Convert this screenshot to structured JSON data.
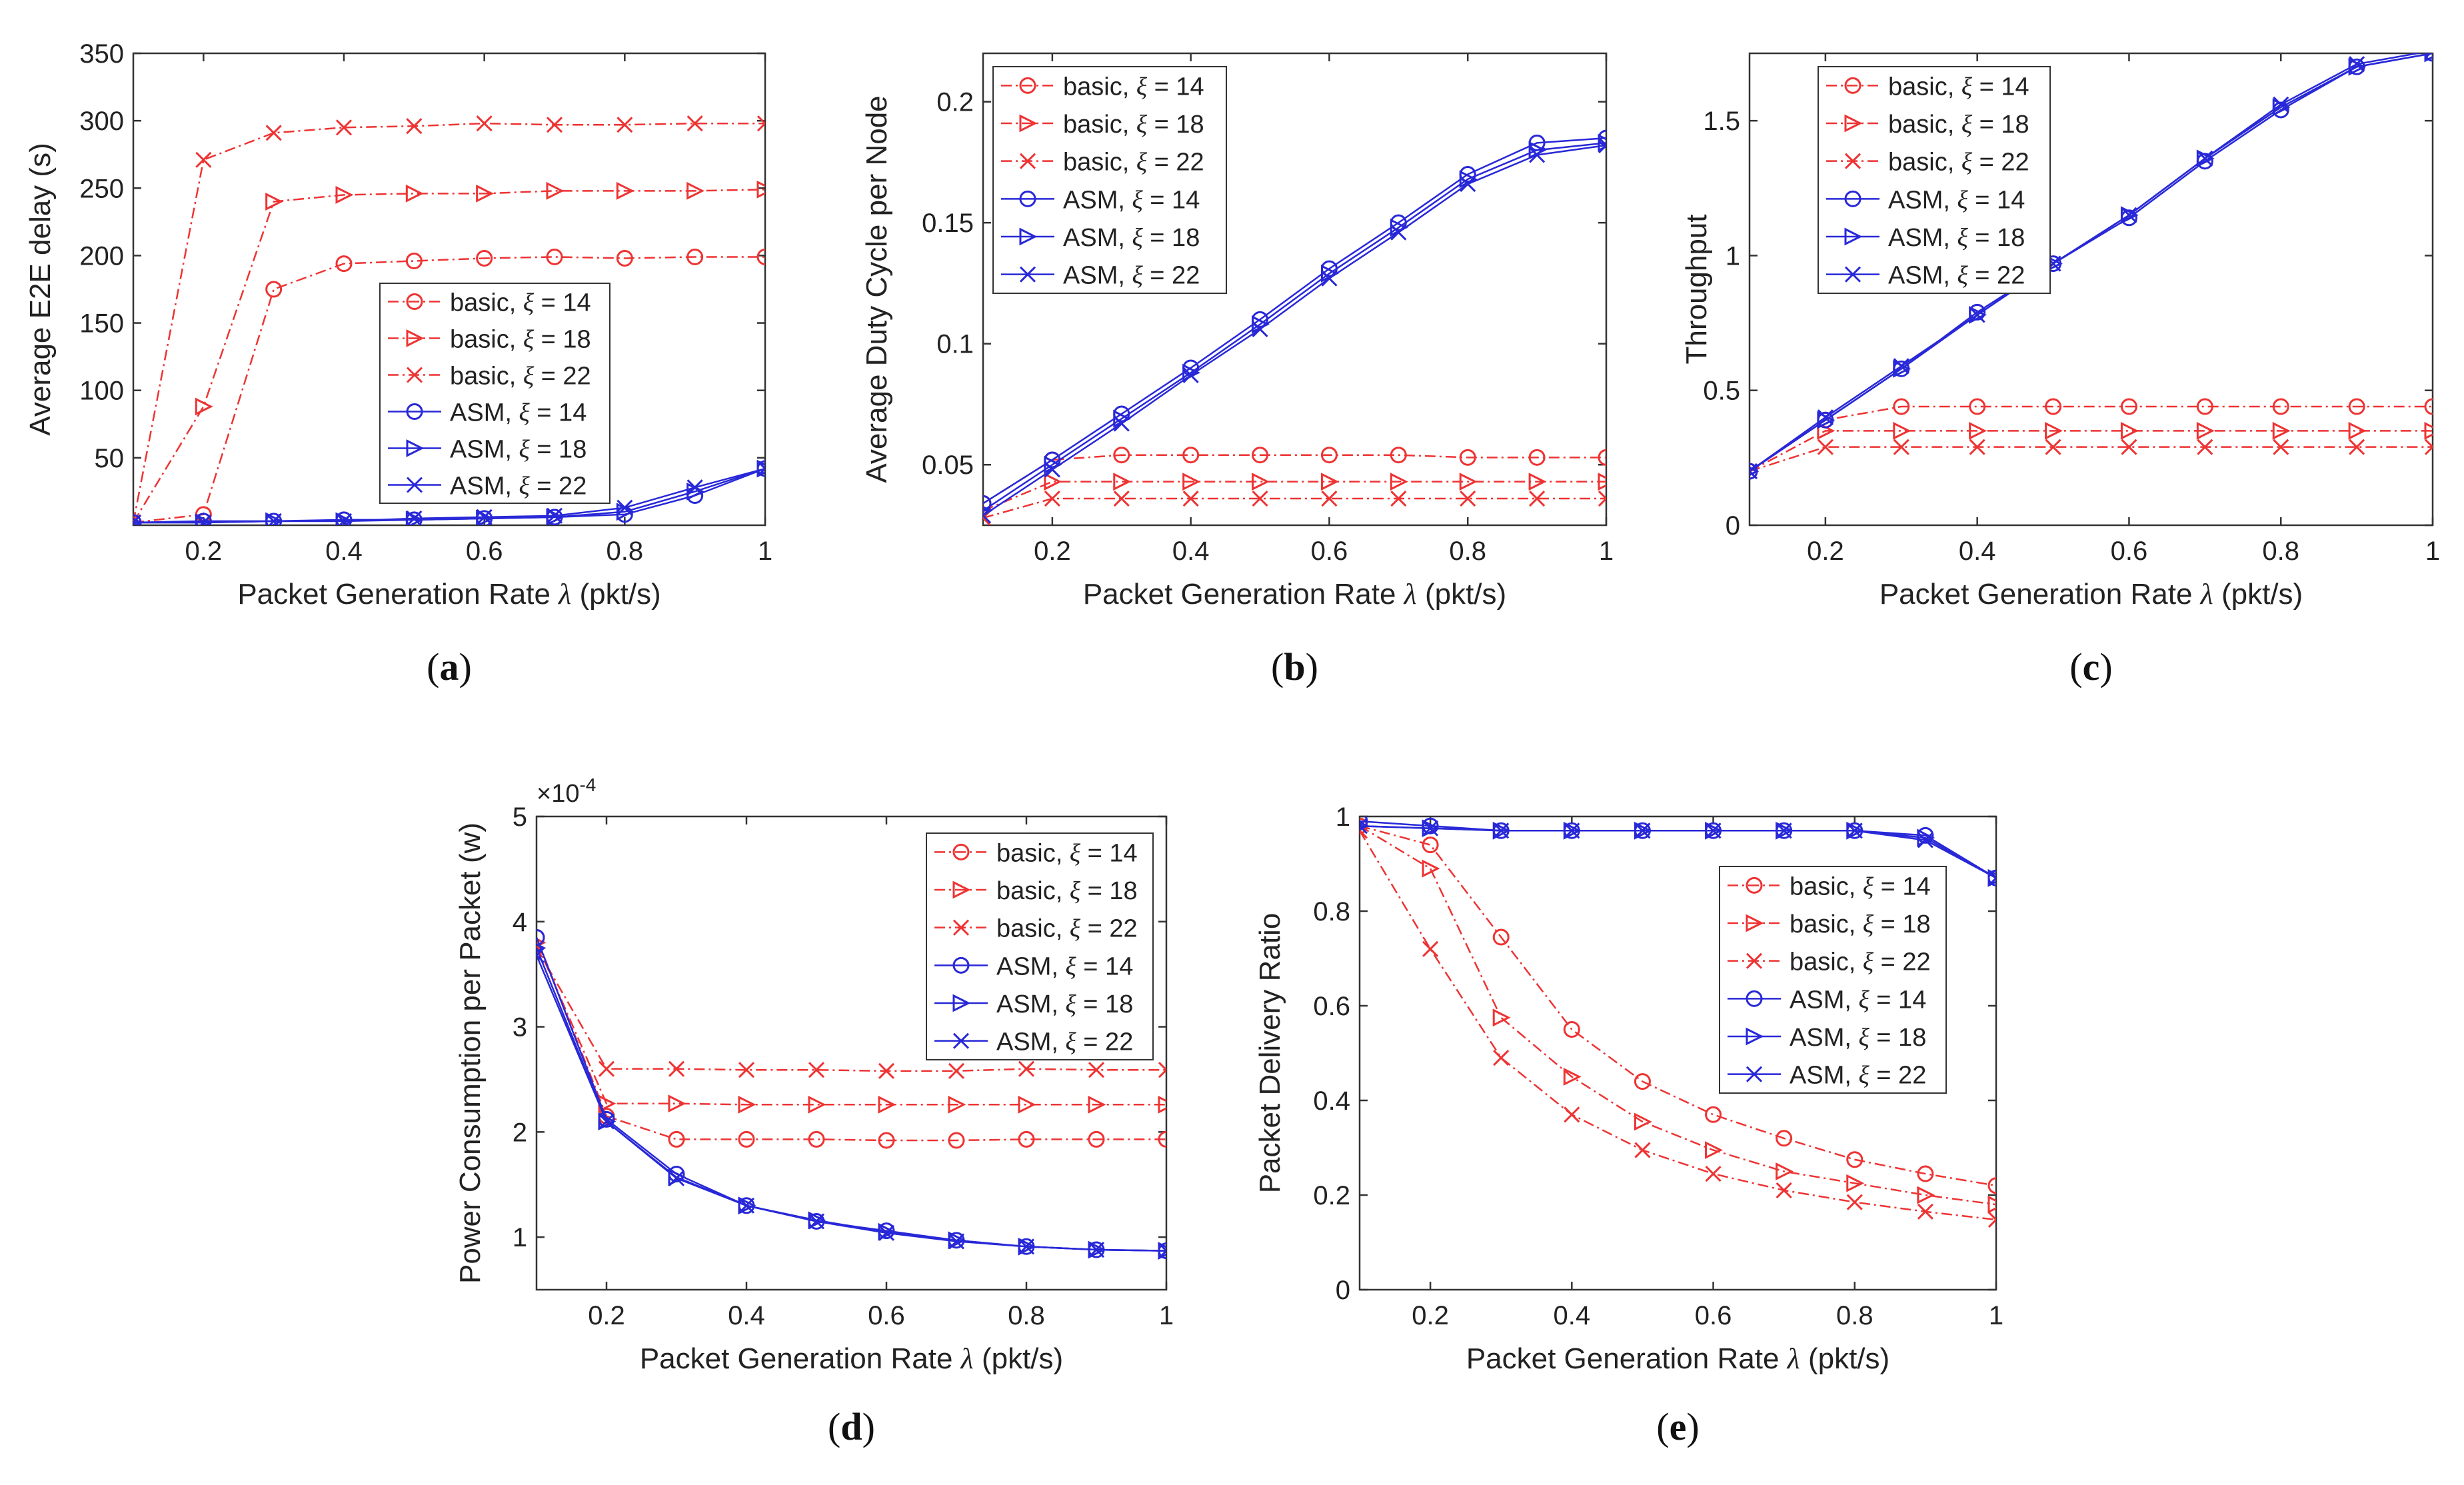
{
  "figure": {
    "x_label_main": "Packet Generation Rate ",
    "x_label_symbol": "λ",
    "x_label_unit": " (pkt/s)",
    "legend_labels": [
      "basic, ξ = 14",
      "basic, ξ = 18",
      "basic, ξ = 22",
      "ASM, ξ = 14",
      "ASM, ξ = 18",
      "ASM, ξ = 22"
    ],
    "series_colors": {
      "basic": "#ee3333",
      "asm": "#2828d8"
    },
    "series_markers": [
      "circle",
      "triangle-right",
      "x",
      "circle",
      "triangle-right",
      "x"
    ]
  },
  "chart_data": [
    {
      "id": "a",
      "panel_label": "(a)",
      "type": "line",
      "ylabel": "Average E2E delay (s)",
      "xlim": [
        0.1,
        1
      ],
      "ylim": [
        0,
        350
      ],
      "xticks": [
        0.2,
        0.4,
        0.6,
        0.8,
        1
      ],
      "xtick_labels": [
        "0.2",
        "0.4",
        "0.6",
        "0.8",
        "1"
      ],
      "yticks": [
        50,
        100,
        150,
        200,
        250,
        300,
        350
      ],
      "ytick_labels": [
        "50",
        "100",
        "150",
        "200",
        "250",
        "300",
        "350"
      ],
      "legend_position": "center-right",
      "x": [
        0.1,
        0.2,
        0.3,
        0.4,
        0.5,
        0.6,
        0.7,
        0.8,
        0.9,
        1.0
      ],
      "series": [
        {
          "name": "basic, ξ = 14",
          "values": [
            2,
            8,
            175,
            194,
            196,
            198,
            199,
            198,
            199,
            199
          ]
        },
        {
          "name": "basic, ξ = 18",
          "values": [
            2,
            88,
            240,
            245,
            246,
            246,
            248,
            248,
            248,
            249
          ]
        },
        {
          "name": "basic, ξ = 22",
          "values": [
            2,
            271,
            291,
            295,
            296,
            298,
            297,
            297,
            298,
            298
          ]
        },
        {
          "name": "ASM, ξ = 14",
          "values": [
            2,
            3,
            3,
            4,
            4,
            5,
            6,
            8,
            22,
            42
          ]
        },
        {
          "name": "ASM, ξ = 18",
          "values": [
            2,
            2,
            3,
            3,
            4,
            5,
            6,
            10,
            25,
            42
          ]
        },
        {
          "name": "ASM, ξ = 22",
          "values": [
            2,
            2,
            3,
            3,
            5,
            6,
            7,
            13,
            28,
            42
          ]
        }
      ]
    },
    {
      "id": "b",
      "panel_label": "(b)",
      "type": "line",
      "ylabel": "Average Duty Cycle per Node",
      "xlim": [
        0.1,
        1
      ],
      "ylim": [
        0.025,
        0.22
      ],
      "xticks": [
        0.2,
        0.4,
        0.6,
        0.8,
        1
      ],
      "xtick_labels": [
        "0.2",
        "0.4",
        "0.6",
        "0.8",
        "1"
      ],
      "yticks": [
        0.05,
        0.1,
        0.15,
        0.2
      ],
      "ytick_labels": [
        "0.05",
        "0.1",
        "0.15",
        "0.2"
      ],
      "legend_position": "top-left",
      "x": [
        0.1,
        0.2,
        0.3,
        0.4,
        0.5,
        0.6,
        0.7,
        0.8,
        0.9,
        1.0
      ],
      "series": [
        {
          "name": "basic, ξ = 14",
          "values": [
            0.034,
            0.052,
            0.054,
            0.054,
            0.054,
            0.054,
            0.054,
            0.053,
            0.053,
            0.053
          ]
        },
        {
          "name": "basic, ξ = 18",
          "values": [
            0.031,
            0.043,
            0.043,
            0.043,
            0.043,
            0.043,
            0.043,
            0.043,
            0.043,
            0.043
          ]
        },
        {
          "name": "basic, ξ = 22",
          "values": [
            0.028,
            0.036,
            0.036,
            0.036,
            0.036,
            0.036,
            0.036,
            0.036,
            0.036,
            0.036
          ]
        },
        {
          "name": "ASM, ξ = 14",
          "values": [
            0.034,
            0.052,
            0.071,
            0.09,
            0.11,
            0.131,
            0.15,
            0.17,
            0.183,
            0.185
          ]
        },
        {
          "name": "ASM, ξ = 18",
          "values": [
            0.031,
            0.05,
            0.069,
            0.088,
            0.108,
            0.129,
            0.148,
            0.168,
            0.18,
            0.183
          ]
        },
        {
          "name": "ASM, ξ = 22",
          "values": [
            0.029,
            0.048,
            0.067,
            0.087,
            0.106,
            0.127,
            0.146,
            0.166,
            0.178,
            0.182
          ]
        }
      ]
    },
    {
      "id": "c",
      "panel_label": "(c)",
      "type": "line",
      "ylabel": "Throughput",
      "xlim": [
        0.1,
        1
      ],
      "ylim": [
        0,
        1.75
      ],
      "xticks": [
        0.2,
        0.4,
        0.6,
        0.8,
        1
      ],
      "xtick_labels": [
        "0.2",
        "0.4",
        "0.6",
        "0.8",
        "1"
      ],
      "yticks": [
        0,
        0.5,
        1,
        1.5
      ],
      "ytick_labels": [
        "0",
        "0.5",
        "1",
        "1.5"
      ],
      "legend_position": "top-left",
      "x": [
        0.1,
        0.2,
        0.3,
        0.4,
        0.5,
        0.6,
        0.7,
        0.8,
        0.9,
        1.0
      ],
      "series": [
        {
          "name": "basic, ξ = 14",
          "values": [
            0.2,
            0.39,
            0.44,
            0.44,
            0.44,
            0.44,
            0.44,
            0.44,
            0.44,
            0.44
          ]
        },
        {
          "name": "basic, ξ = 18",
          "values": [
            0.2,
            0.35,
            0.35,
            0.35,
            0.35,
            0.35,
            0.35,
            0.35,
            0.35,
            0.35
          ]
        },
        {
          "name": "basic, ξ = 22",
          "values": [
            0.2,
            0.29,
            0.29,
            0.29,
            0.29,
            0.29,
            0.29,
            0.29,
            0.29,
            0.29
          ]
        },
        {
          "name": "ASM, ξ = 14",
          "values": [
            0.2,
            0.39,
            0.58,
            0.79,
            0.97,
            1.14,
            1.35,
            1.54,
            1.7,
            1.75
          ]
        },
        {
          "name": "ASM, ξ = 18",
          "values": [
            0.2,
            0.39,
            0.58,
            0.78,
            0.97,
            1.15,
            1.36,
            1.55,
            1.7,
            1.75
          ]
        },
        {
          "name": "ASM, ξ = 22",
          "values": [
            0.2,
            0.4,
            0.59,
            0.78,
            0.97,
            1.15,
            1.36,
            1.56,
            1.71,
            1.76
          ]
        }
      ]
    },
    {
      "id": "d",
      "panel_label": "(d)",
      "type": "line",
      "ylabel": "Power Consumption per Packet (w)",
      "exponent_base": "×10",
      "exponent_power": "-4",
      "xlim": [
        0.1,
        1
      ],
      "ylim": [
        0.5,
        5
      ],
      "xticks": [
        0.2,
        0.4,
        0.6,
        0.8,
        1
      ],
      "xtick_labels": [
        "0.2",
        "0.4",
        "0.6",
        "0.8",
        "1"
      ],
      "yticks": [
        1,
        2,
        3,
        4,
        5
      ],
      "ytick_labels": [
        "1",
        "2",
        "3",
        "4",
        "5"
      ],
      "legend_position": "top-right",
      "x": [
        0.1,
        0.2,
        0.3,
        0.4,
        0.5,
        0.6,
        0.7,
        0.8,
        0.9,
        1.0
      ],
      "series": [
        {
          "name": "basic, ξ = 14",
          "values": [
            3.85,
            2.15,
            1.93,
            1.93,
            1.93,
            1.92,
            1.92,
            1.93,
            1.93,
            1.93
          ]
        },
        {
          "name": "basic, ξ = 18",
          "values": [
            3.8,
            2.27,
            2.27,
            2.26,
            2.26,
            2.26,
            2.26,
            2.26,
            2.26,
            2.26
          ]
        },
        {
          "name": "basic, ξ = 22",
          "values": [
            3.75,
            2.6,
            2.6,
            2.59,
            2.59,
            2.58,
            2.58,
            2.6,
            2.59,
            2.59
          ]
        },
        {
          "name": "ASM, ξ = 14",
          "values": [
            3.85,
            2.12,
            1.6,
            1.3,
            1.15,
            1.06,
            0.97,
            0.91,
            0.88,
            0.87
          ]
        },
        {
          "name": "ASM, ξ = 18",
          "values": [
            3.75,
            2.1,
            1.57,
            1.3,
            1.16,
            1.05,
            0.97,
            0.91,
            0.88,
            0.87
          ]
        },
        {
          "name": "ASM, ξ = 22",
          "values": [
            3.68,
            2.1,
            1.56,
            1.3,
            1.15,
            1.04,
            0.96,
            0.91,
            0.88,
            0.87
          ]
        }
      ]
    },
    {
      "id": "e",
      "panel_label": "(e)",
      "type": "line",
      "ylabel": "Packet Delivery Ratio",
      "xlim": [
        0.1,
        1
      ],
      "ylim": [
        0,
        1
      ],
      "xticks": [
        0.2,
        0.4,
        0.6,
        0.8,
        1
      ],
      "xtick_labels": [
        "0.2",
        "0.4",
        "0.6",
        "0.8",
        "1"
      ],
      "yticks": [
        0,
        0.2,
        0.4,
        0.6,
        0.8,
        1
      ],
      "ytick_labels": [
        "0",
        "0.2",
        "0.4",
        "0.6",
        "0.8",
        "1"
      ],
      "legend_position": "center-right",
      "x": [
        0.1,
        0.2,
        0.3,
        0.4,
        0.5,
        0.6,
        0.7,
        0.8,
        0.9,
        1.0
      ],
      "series": [
        {
          "name": "basic, ξ = 14",
          "values": [
            0.98,
            0.94,
            0.745,
            0.55,
            0.44,
            0.37,
            0.32,
            0.275,
            0.245,
            0.22
          ]
        },
        {
          "name": "basic, ξ = 18",
          "values": [
            0.98,
            0.89,
            0.575,
            0.45,
            0.355,
            0.295,
            0.25,
            0.225,
            0.2,
            0.18
          ]
        },
        {
          "name": "basic, ξ = 22",
          "values": [
            0.97,
            0.72,
            0.49,
            0.37,
            0.295,
            0.245,
            0.21,
            0.185,
            0.165,
            0.148
          ]
        },
        {
          "name": "ASM, ξ = 14",
          "values": [
            0.99,
            0.98,
            0.97,
            0.97,
            0.97,
            0.97,
            0.97,
            0.97,
            0.96,
            0.87
          ]
        },
        {
          "name": "ASM, ξ = 18",
          "values": [
            0.98,
            0.975,
            0.97,
            0.97,
            0.97,
            0.97,
            0.97,
            0.97,
            0.955,
            0.87
          ]
        },
        {
          "name": "ASM, ξ = 22",
          "values": [
            0.98,
            0.975,
            0.97,
            0.97,
            0.97,
            0.97,
            0.97,
            0.97,
            0.95,
            0.87
          ]
        }
      ]
    }
  ]
}
